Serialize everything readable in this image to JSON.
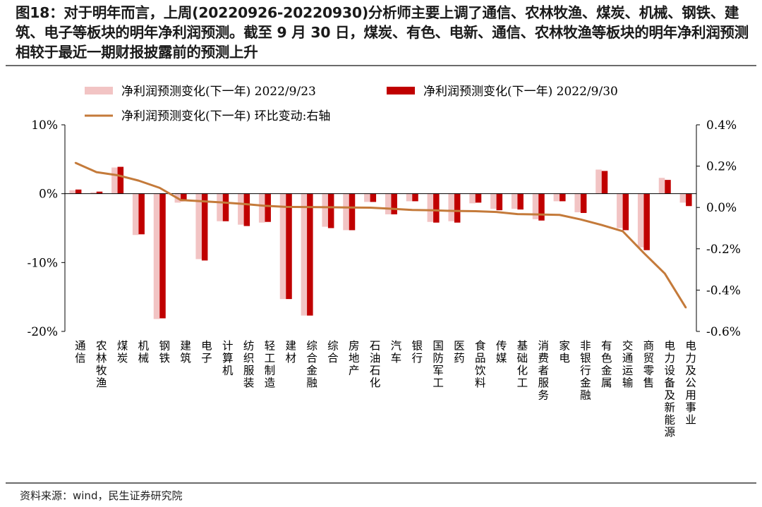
{
  "title": "图18：对于明年而言，上周(20220926-20220930)分析师主要上调了通信、农林牧渔、煤炭、机械、钢铁、建筑、电子等板块的明年净利润预测。截至 9 月 30 日，煤炭、有色、电新、通信、农林牧渔等板块的明年净利润预测相较于最近一期财报披露前的预测上升",
  "source": "资料来源：wind，民生证券研究院",
  "colors": {
    "series1": "#f2c4c4",
    "series2": "#c00000",
    "line": "#c47a3a",
    "axis": "#000000"
  },
  "chart_data": {
    "type": "bar",
    "categories": [
      "通信",
      "农林牧渔",
      "煤炭",
      "机械",
      "钢铁",
      "建筑",
      "电子",
      "计算机",
      "纺织服装",
      "轻工制造",
      "建材",
      "综合金融",
      "综合",
      "房地产",
      "石油石化",
      "汽车",
      "银行",
      "国防军工",
      "医药",
      "食品饮料",
      "传媒",
      "基础化工",
      "消费者服务",
      "家电",
      "非银行金融",
      "有色金属",
      "交通运输",
      "商贸零售",
      "电力设备及新能源",
      "电力及公用事业"
    ],
    "series": [
      {
        "name": "净利润预测变化(下一年) 2022/9/23",
        "axis": "left",
        "values": [
          0.5,
          0.2,
          3.8,
          -6.0,
          -18.2,
          -1.3,
          -9.5,
          -4.0,
          -4.5,
          -4.2,
          -15.3,
          -17.7,
          -4.8,
          -5.3,
          -1.2,
          -3.0,
          -1.1,
          -4.1,
          -4.0,
          -1.4,
          -2.2,
          -2.2,
          -3.7,
          -1.1,
          -2.7,
          3.5,
          -5.0,
          -7.8,
          2.3,
          -1.3
        ]
      },
      {
        "name": "净利润预测变化(下一年) 2022/9/30",
        "axis": "left",
        "values": [
          0.6,
          0.3,
          3.9,
          -5.9,
          -18.1,
          -1.1,
          -9.7,
          -4.0,
          -4.7,
          -4.1,
          -15.3,
          -17.7,
          -5.0,
          -5.3,
          -1.2,
          -3.0,
          -1.1,
          -4.2,
          -4.2,
          -1.3,
          -2.4,
          -2.3,
          -3.9,
          -1.1,
          -2.8,
          3.3,
          -5.3,
          -8.2,
          2.0,
          -1.8
        ]
      },
      {
        "name": "净利润预测变化(下一年) 环比变动:右轴",
        "axis": "right",
        "type": "line",
        "values": [
          0.216,
          0.171,
          0.156,
          0.13,
          0.095,
          0.036,
          0.03,
          0.024,
          0.017,
          0.008,
          0.003,
          0.002,
          0.001,
          0.0,
          -0.001,
          -0.006,
          -0.012,
          -0.014,
          -0.017,
          -0.018,
          -0.022,
          -0.032,
          -0.034,
          -0.036,
          -0.058,
          -0.085,
          -0.115,
          -0.22,
          -0.32,
          -0.485
        ]
      }
    ],
    "y_left": {
      "ylim": [
        -20,
        10
      ],
      "ticks": [
        10,
        0,
        -10,
        -20
      ],
      "tick_labels": [
        "10%",
        "0%",
        "-10%",
        "-20%"
      ]
    },
    "y_right": {
      "ylim": [
        -0.6,
        0.4
      ],
      "ticks": [
        0.4,
        0.2,
        0.0,
        -0.2,
        -0.4,
        -0.6
      ],
      "tick_labels": [
        "0.4%",
        "0.2%",
        "0.0%",
        "-0.2%",
        "-0.4%",
        "-0.6%"
      ]
    },
    "legend": [
      {
        "label": "净利润预测变化(下一年) 2022/9/23",
        "kind": "bar",
        "color": "#f2c4c4"
      },
      {
        "label": "净利润预测变化(下一年) 2022/9/30",
        "kind": "bar",
        "color": "#c00000"
      },
      {
        "label": "净利润预测变化(下一年) 环比变动:右轴",
        "kind": "line",
        "color": "#c47a3a"
      }
    ],
    "legend_position": "top",
    "grid": false
  }
}
